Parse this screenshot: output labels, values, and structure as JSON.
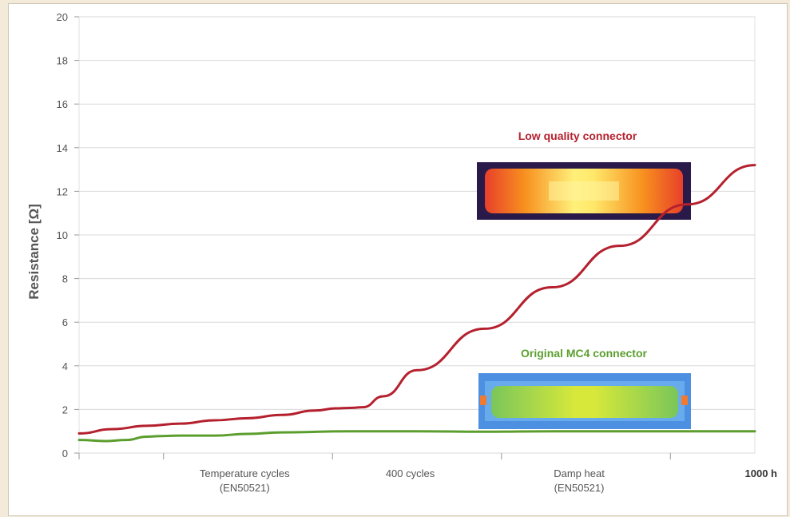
{
  "chart_data": {
    "type": "line",
    "ylabel": "Resistance [Ω]",
    "xlabel": "",
    "ylim": [
      0,
      20
    ],
    "yticks": [
      0,
      2,
      4,
      6,
      8,
      10,
      12,
      14,
      16,
      18,
      20
    ],
    "grid": true,
    "x_labels": [
      {
        "line1": "Temperature cycles",
        "line2": "(EN50521)",
        "pos": 0.245
      },
      {
        "line1": "400 cycles",
        "line2": "",
        "pos": 0.49
      },
      {
        "line1": "Damp heat",
        "line2": "(EN50521)",
        "pos": 0.74
      },
      {
        "line1": "1000 h",
        "line2": "",
        "pos": 1.0,
        "bold": true
      }
    ],
    "series": [
      {
        "name": "Low quality connector",
        "color": "#b5202e",
        "x": [
          0,
          0.05,
          0.1,
          0.15,
          0.2,
          0.25,
          0.3,
          0.35,
          0.38,
          0.4,
          0.42,
          0.45,
          0.5,
          0.6,
          0.7,
          0.8,
          0.9,
          1.0
        ],
        "y": [
          0.9,
          1.1,
          1.25,
          1.35,
          1.5,
          1.6,
          1.75,
          1.95,
          2.05,
          2.07,
          2.1,
          2.6,
          3.8,
          5.7,
          7.6,
          9.5,
          11.4,
          13.2
        ]
      },
      {
        "name": "Original MC4 connector",
        "color": "#5c9e2e",
        "x": [
          0,
          0.04,
          0.07,
          0.1,
          0.12,
          0.15,
          0.2,
          0.25,
          0.3,
          0.4,
          0.5,
          0.6,
          0.7,
          0.8,
          0.9,
          1.0
        ],
        "y": [
          0.6,
          0.55,
          0.6,
          0.75,
          0.78,
          0.8,
          0.8,
          0.88,
          0.95,
          1.0,
          1.0,
          0.98,
          1.0,
          1.0,
          1.0,
          1.0
        ]
      }
    ]
  },
  "colors": {
    "low_quality": "#b5202e",
    "original": "#5c9e2e",
    "grid": "#d9d9d9"
  }
}
